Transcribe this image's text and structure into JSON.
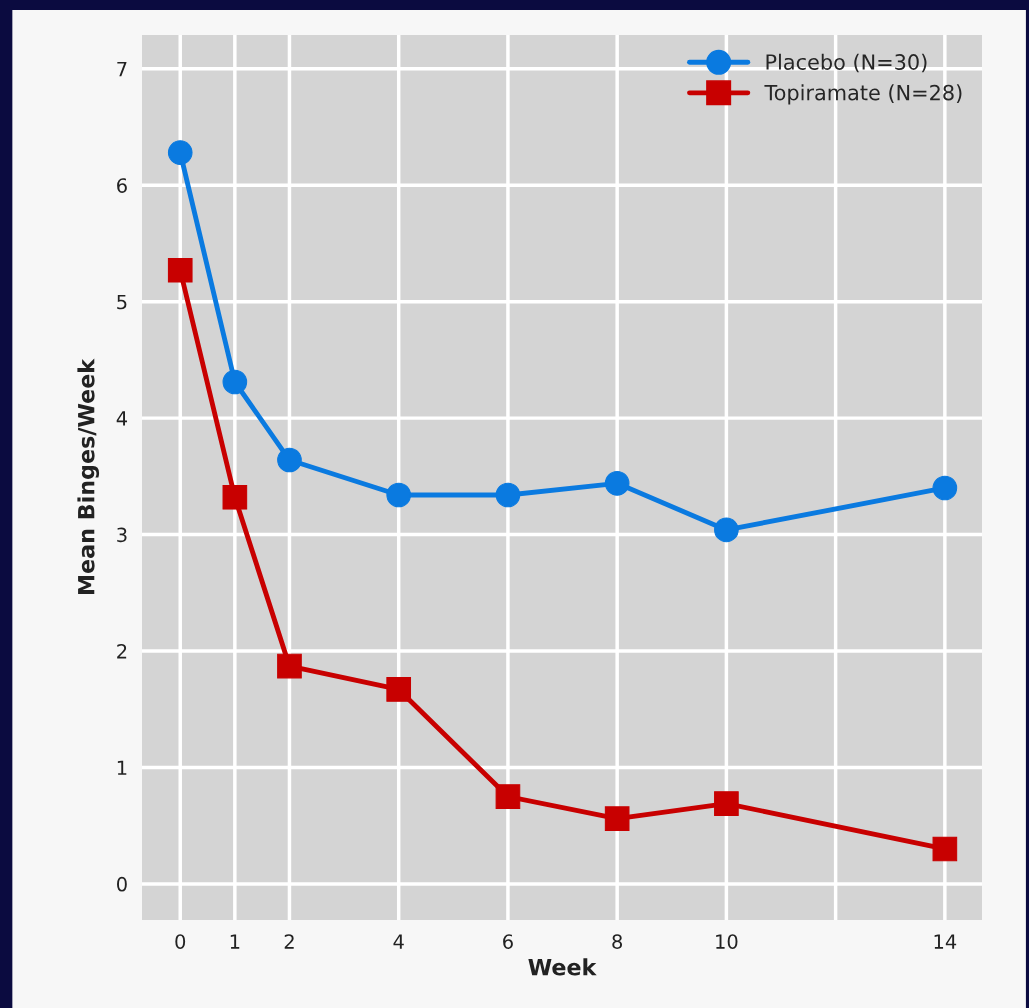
{
  "chart_data": {
    "type": "line",
    "xlabel": "Week",
    "ylabel": "Mean Binges/Week",
    "x": [
      0,
      1,
      2,
      4,
      6,
      8,
      10,
      14
    ],
    "series": [
      {
        "name": "Placebo (N=30)",
        "color": "#0a7ae0",
        "marker": "circle",
        "values": [
          6.28,
          4.31,
          3.64,
          3.34,
          3.34,
          3.44,
          3.04,
          3.4
        ]
      },
      {
        "name": "Topiramate (N=28)",
        "color": "#c80000",
        "marker": "square",
        "values": [
          5.27,
          3.32,
          1.87,
          1.67,
          0.75,
          0.56,
          0.69,
          0.3
        ]
      }
    ],
    "xlim": [
      -0.7,
      14.68
    ],
    "ylim": [
      -0.31,
      7.29
    ],
    "xticks": [
      0,
      1,
      2,
      4,
      6,
      8,
      10,
      {
        "value": 12,
        "label": null
      },
      14
    ],
    "yticks": [
      0,
      1,
      2,
      3,
      4,
      5,
      6,
      7
    ],
    "grid": true,
    "legend": "top right",
    "line_style": "solid"
  }
}
